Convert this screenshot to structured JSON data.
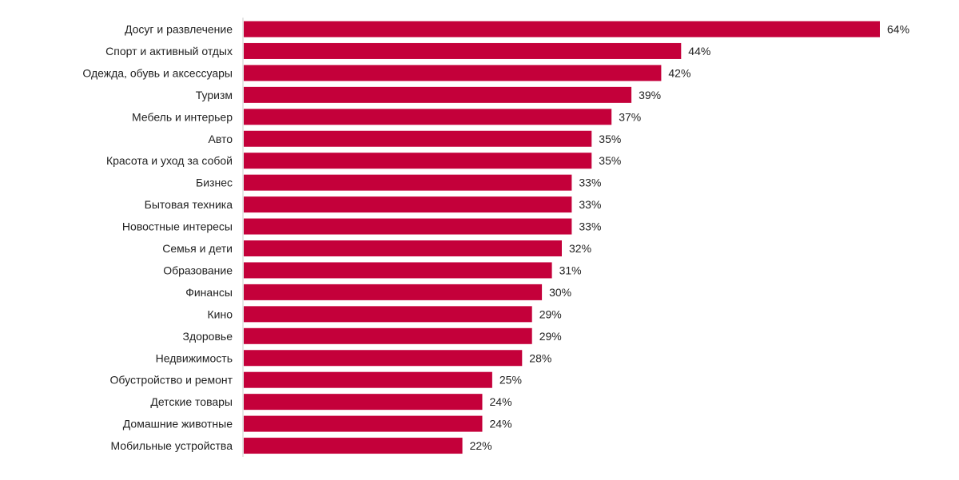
{
  "colors": {
    "bar": "#c4003a",
    "axis": "#cccccc",
    "text": "#222222"
  },
  "chart_data": {
    "type": "bar",
    "orientation": "horizontal",
    "title": "",
    "xlabel": "",
    "ylabel": "",
    "xlim": [
      0,
      64
    ],
    "grid": false,
    "value_suffix": "%",
    "categories": [
      "Досуг и развлечение",
      "Спорт и активный отдых",
      "Одежда, обувь и аксессуары",
      "Туризм",
      "Мебель и интерьер",
      "Авто",
      "Красота и уход за собой",
      "Бизнес",
      "Бытовая техника",
      "Новостные интересы",
      "Семья и дети",
      "Образование",
      "Финансы",
      "Кино",
      "Здоровье",
      "Недвижимость",
      "Обустройство и ремонт",
      "Детские товары",
      "Домашние животные",
      "Мобильные устройства"
    ],
    "values": [
      64,
      44,
      42,
      39,
      37,
      35,
      35,
      33,
      33,
      33,
      32,
      31,
      30,
      29,
      29,
      28,
      25,
      24,
      24,
      22
    ],
    "value_labels": [
      "64%",
      "44%",
      "42%",
      "39%",
      "37%",
      "35%",
      "35%",
      "33%",
      "33%",
      "33%",
      "32%",
      "31%",
      "30%",
      "29%",
      "29%",
      "28%",
      "25%",
      "24%",
      "24%",
      "22%"
    ]
  }
}
